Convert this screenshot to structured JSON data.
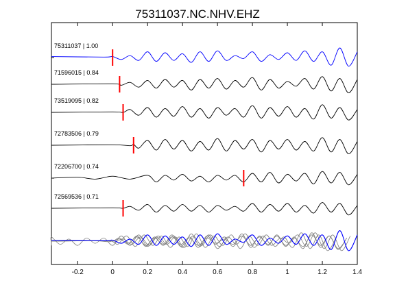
{
  "chart_data": {
    "type": "line",
    "title": "75311037.NC.NHV.EHZ",
    "xlabel": "",
    "ylabel": "",
    "xlim": [
      -0.35,
      1.4
    ],
    "xticks": [
      "-0.2",
      "0",
      "0.2",
      "0.4",
      "0.6",
      "0.8",
      "1",
      "1.2",
      "1.4"
    ],
    "xtick_values": [
      -0.2,
      0,
      0.2,
      0.4,
      0.6,
      0.8,
      1.0,
      1.2,
      1.4
    ],
    "grid": false,
    "colors": {
      "reference": "#0000ff",
      "trace": "#000000",
      "pick": "#ff0000",
      "overlay": "#808080"
    },
    "series": [
      {
        "label": "75311037 | 1.00",
        "color": "#0000ff",
        "pick": 0.0,
        "t": [
          -0.35,
          -0.05,
          0.0,
          0.05,
          0.1,
          0.15,
          0.2,
          0.25,
          0.3,
          0.35,
          0.4,
          0.45,
          0.5,
          0.55,
          0.6,
          0.65,
          0.7,
          0.75,
          0.8,
          0.85,
          0.9,
          0.95,
          1.0,
          1.05,
          1.1,
          1.15,
          1.2,
          1.25,
          1.3,
          1.35,
          1.4
        ],
        "y": [
          0.1,
          0.05,
          0.1,
          -0.2,
          0.2,
          -0.3,
          0.6,
          -0.4,
          0.5,
          -0.3,
          0.4,
          -0.5,
          0.6,
          -0.4,
          0.7,
          -0.3,
          0.2,
          -0.1,
          0.6,
          -0.4,
          0.3,
          -0.2,
          0.5,
          -0.3,
          0.7,
          -0.4,
          0.6,
          -0.8,
          1.0,
          -0.9,
          0.6
        ]
      },
      {
        "label": "71596015 | 0.84",
        "color": "#000000",
        "pick": 0.04,
        "t": [
          -0.35,
          0.0,
          0.05,
          0.1,
          0.15,
          0.2,
          0.25,
          0.3,
          0.35,
          0.4,
          0.45,
          0.5,
          0.55,
          0.6,
          0.65,
          0.7,
          0.75,
          0.8,
          0.85,
          0.9,
          0.95,
          1.0,
          1.05,
          1.1,
          1.15,
          1.2,
          1.25,
          1.3,
          1.35,
          1.4
        ],
        "y": [
          0.0,
          0.05,
          -0.1,
          0.2,
          -0.3,
          0.4,
          -0.4,
          0.5,
          -0.3,
          0.4,
          -0.6,
          0.5,
          -0.4,
          0.6,
          -0.5,
          0.4,
          -0.3,
          0.7,
          -0.6,
          0.5,
          -0.4,
          0.3,
          -0.2,
          0.6,
          -0.5,
          0.8,
          -0.7,
          0.6,
          -0.9,
          0.5
        ]
      },
      {
        "label": "73519095 | 0.82",
        "color": "#000000",
        "pick": 0.06,
        "t": [
          -0.35,
          0.0,
          0.06,
          0.1,
          0.15,
          0.2,
          0.25,
          0.3,
          0.35,
          0.4,
          0.45,
          0.5,
          0.55,
          0.6,
          0.65,
          0.7,
          0.75,
          0.8,
          0.85,
          0.9,
          0.95,
          1.0,
          1.05,
          1.1,
          1.15,
          1.2,
          1.25,
          1.3,
          1.35,
          1.4
        ],
        "y": [
          0.0,
          0.05,
          0.0,
          0.3,
          -0.3,
          0.5,
          -0.5,
          0.4,
          -0.4,
          0.6,
          -0.5,
          0.4,
          -0.6,
          0.5,
          -0.3,
          0.4,
          -0.5,
          0.7,
          -0.6,
          0.5,
          -0.4,
          0.6,
          -0.5,
          0.4,
          -0.7,
          0.8,
          -0.6,
          0.5,
          -0.8,
          0.3
        ]
      },
      {
        "label": "72783506 | 0.79",
        "color": "#000000",
        "pick": 0.12,
        "t": [
          -0.35,
          0.0,
          0.1,
          0.12,
          0.15,
          0.2,
          0.25,
          0.3,
          0.35,
          0.4,
          0.45,
          0.5,
          0.55,
          0.6,
          0.65,
          0.7,
          0.75,
          0.8,
          0.85,
          0.9,
          0.95,
          1.0,
          1.05,
          1.1,
          1.15,
          1.2,
          1.25,
          1.3,
          1.35,
          1.4
        ],
        "y": [
          0.0,
          0.05,
          -0.05,
          0.1,
          -0.3,
          0.5,
          -0.5,
          0.6,
          -0.4,
          0.5,
          -0.6,
          0.4,
          -0.5,
          0.7,
          -0.6,
          0.5,
          -0.4,
          0.6,
          -0.7,
          0.5,
          -0.4,
          0.6,
          -0.5,
          0.4,
          -0.6,
          0.8,
          -0.7,
          0.6,
          -0.9,
          0.4
        ]
      },
      {
        "label": "72206700 | 0.74",
        "color": "#000000",
        "pick": 0.75,
        "t": [
          -0.35,
          -0.2,
          -0.1,
          0.0,
          0.1,
          0.2,
          0.25,
          0.3,
          0.35,
          0.4,
          0.45,
          0.5,
          0.55,
          0.6,
          0.65,
          0.7,
          0.75,
          0.8,
          0.85,
          0.9,
          0.95,
          1.0,
          1.05,
          1.1,
          1.15,
          1.2,
          1.25,
          1.3,
          1.35,
          1.4
        ],
        "y": [
          0.0,
          0.1,
          -0.1,
          0.2,
          -0.1,
          0.3,
          -0.4,
          0.3,
          -0.2,
          0.4,
          -0.3,
          0.2,
          -0.4,
          0.3,
          -0.2,
          0.3,
          -0.4,
          0.5,
          -0.4,
          0.6,
          -0.5,
          0.4,
          -0.3,
          0.5,
          -0.6,
          0.7,
          -0.5,
          0.6,
          -0.7,
          0.4
        ]
      },
      {
        "label": "72569536 | 0.71",
        "color": "#000000",
        "pick": 0.06,
        "t": [
          -0.35,
          0.0,
          0.06,
          0.1,
          0.15,
          0.2,
          0.25,
          0.3,
          0.35,
          0.4,
          0.45,
          0.5,
          0.55,
          0.6,
          0.65,
          0.7,
          0.75,
          0.8,
          0.85,
          0.9,
          0.95,
          1.0,
          1.05,
          1.1,
          1.15,
          1.2,
          1.25,
          1.3,
          1.35,
          1.4
        ],
        "y": [
          0.0,
          0.05,
          0.0,
          0.2,
          -0.2,
          0.4,
          -0.4,
          0.3,
          -0.3,
          0.4,
          -0.3,
          0.3,
          -0.4,
          0.3,
          -0.2,
          0.2,
          -0.3,
          0.5,
          -0.4,
          0.4,
          -0.3,
          0.5,
          -0.4,
          0.3,
          -0.5,
          0.6,
          -0.4,
          0.5,
          -0.7,
          0.3
        ]
      }
    ]
  }
}
